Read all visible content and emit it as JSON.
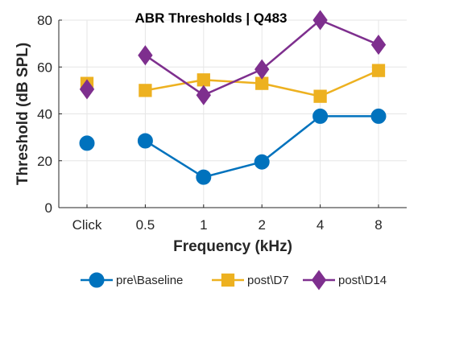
{
  "chart_data": {
    "type": "line",
    "title": "ABR Thresholds | Q483",
    "xlabel": "Frequency (kHz)",
    "ylabel": "Threshold (dB SPL)",
    "categories": [
      "Click",
      "0.5",
      "1",
      "2",
      "4",
      "8"
    ],
    "ylim": [
      0,
      80
    ],
    "yticks": [
      0,
      20,
      40,
      60,
      80
    ],
    "grid": true,
    "legend_position": "bottom",
    "series": [
      {
        "name": "pre\\Baseline",
        "color": "#0072BD",
        "marker": "circle",
        "values": [
          27.5,
          28.5,
          13,
          19.5,
          39,
          39
        ],
        "line_breaks_after": [
          0
        ]
      },
      {
        "name": "post\\D7",
        "color": "#EDB120",
        "marker": "square",
        "values": [
          53,
          50,
          54.5,
          53,
          47.5,
          58.5
        ],
        "line_breaks_after": [
          0
        ]
      },
      {
        "name": "post\\D14",
        "color": "#7E2F8E",
        "marker": "diamond",
        "values": [
          50.5,
          65,
          48,
          59,
          80,
          69.5
        ],
        "line_breaks_after": [
          0
        ]
      }
    ]
  }
}
